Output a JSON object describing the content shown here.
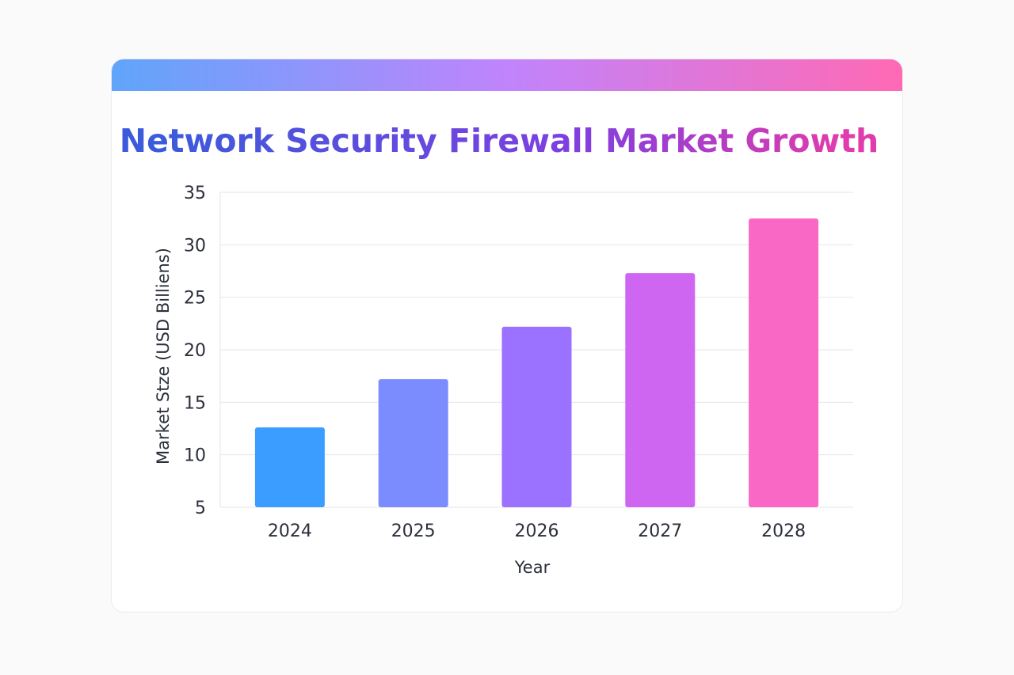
{
  "chart_data": {
    "type": "bar",
    "title": "Network Security Firewall Market Growth",
    "xlabel": "Year",
    "ylabel": "Market Stze (USD Billiens)",
    "categories": [
      "2024",
      "2025",
      "2026",
      "2027",
      "2028"
    ],
    "values": [
      12.6,
      17.2,
      22.2,
      27.3,
      32.5
    ],
    "ylim": [
      5,
      35
    ],
    "yticks": [
      5,
      10,
      15,
      20,
      25,
      30,
      35
    ],
    "grid": true,
    "bar_colors": [
      "#3b9dff",
      "#7b8cff",
      "#9a72ff",
      "#cf66f2",
      "#f868c4"
    ],
    "title_gradient": [
      "#3b5bdb",
      "#7e3fe0",
      "#e03cae"
    ]
  }
}
